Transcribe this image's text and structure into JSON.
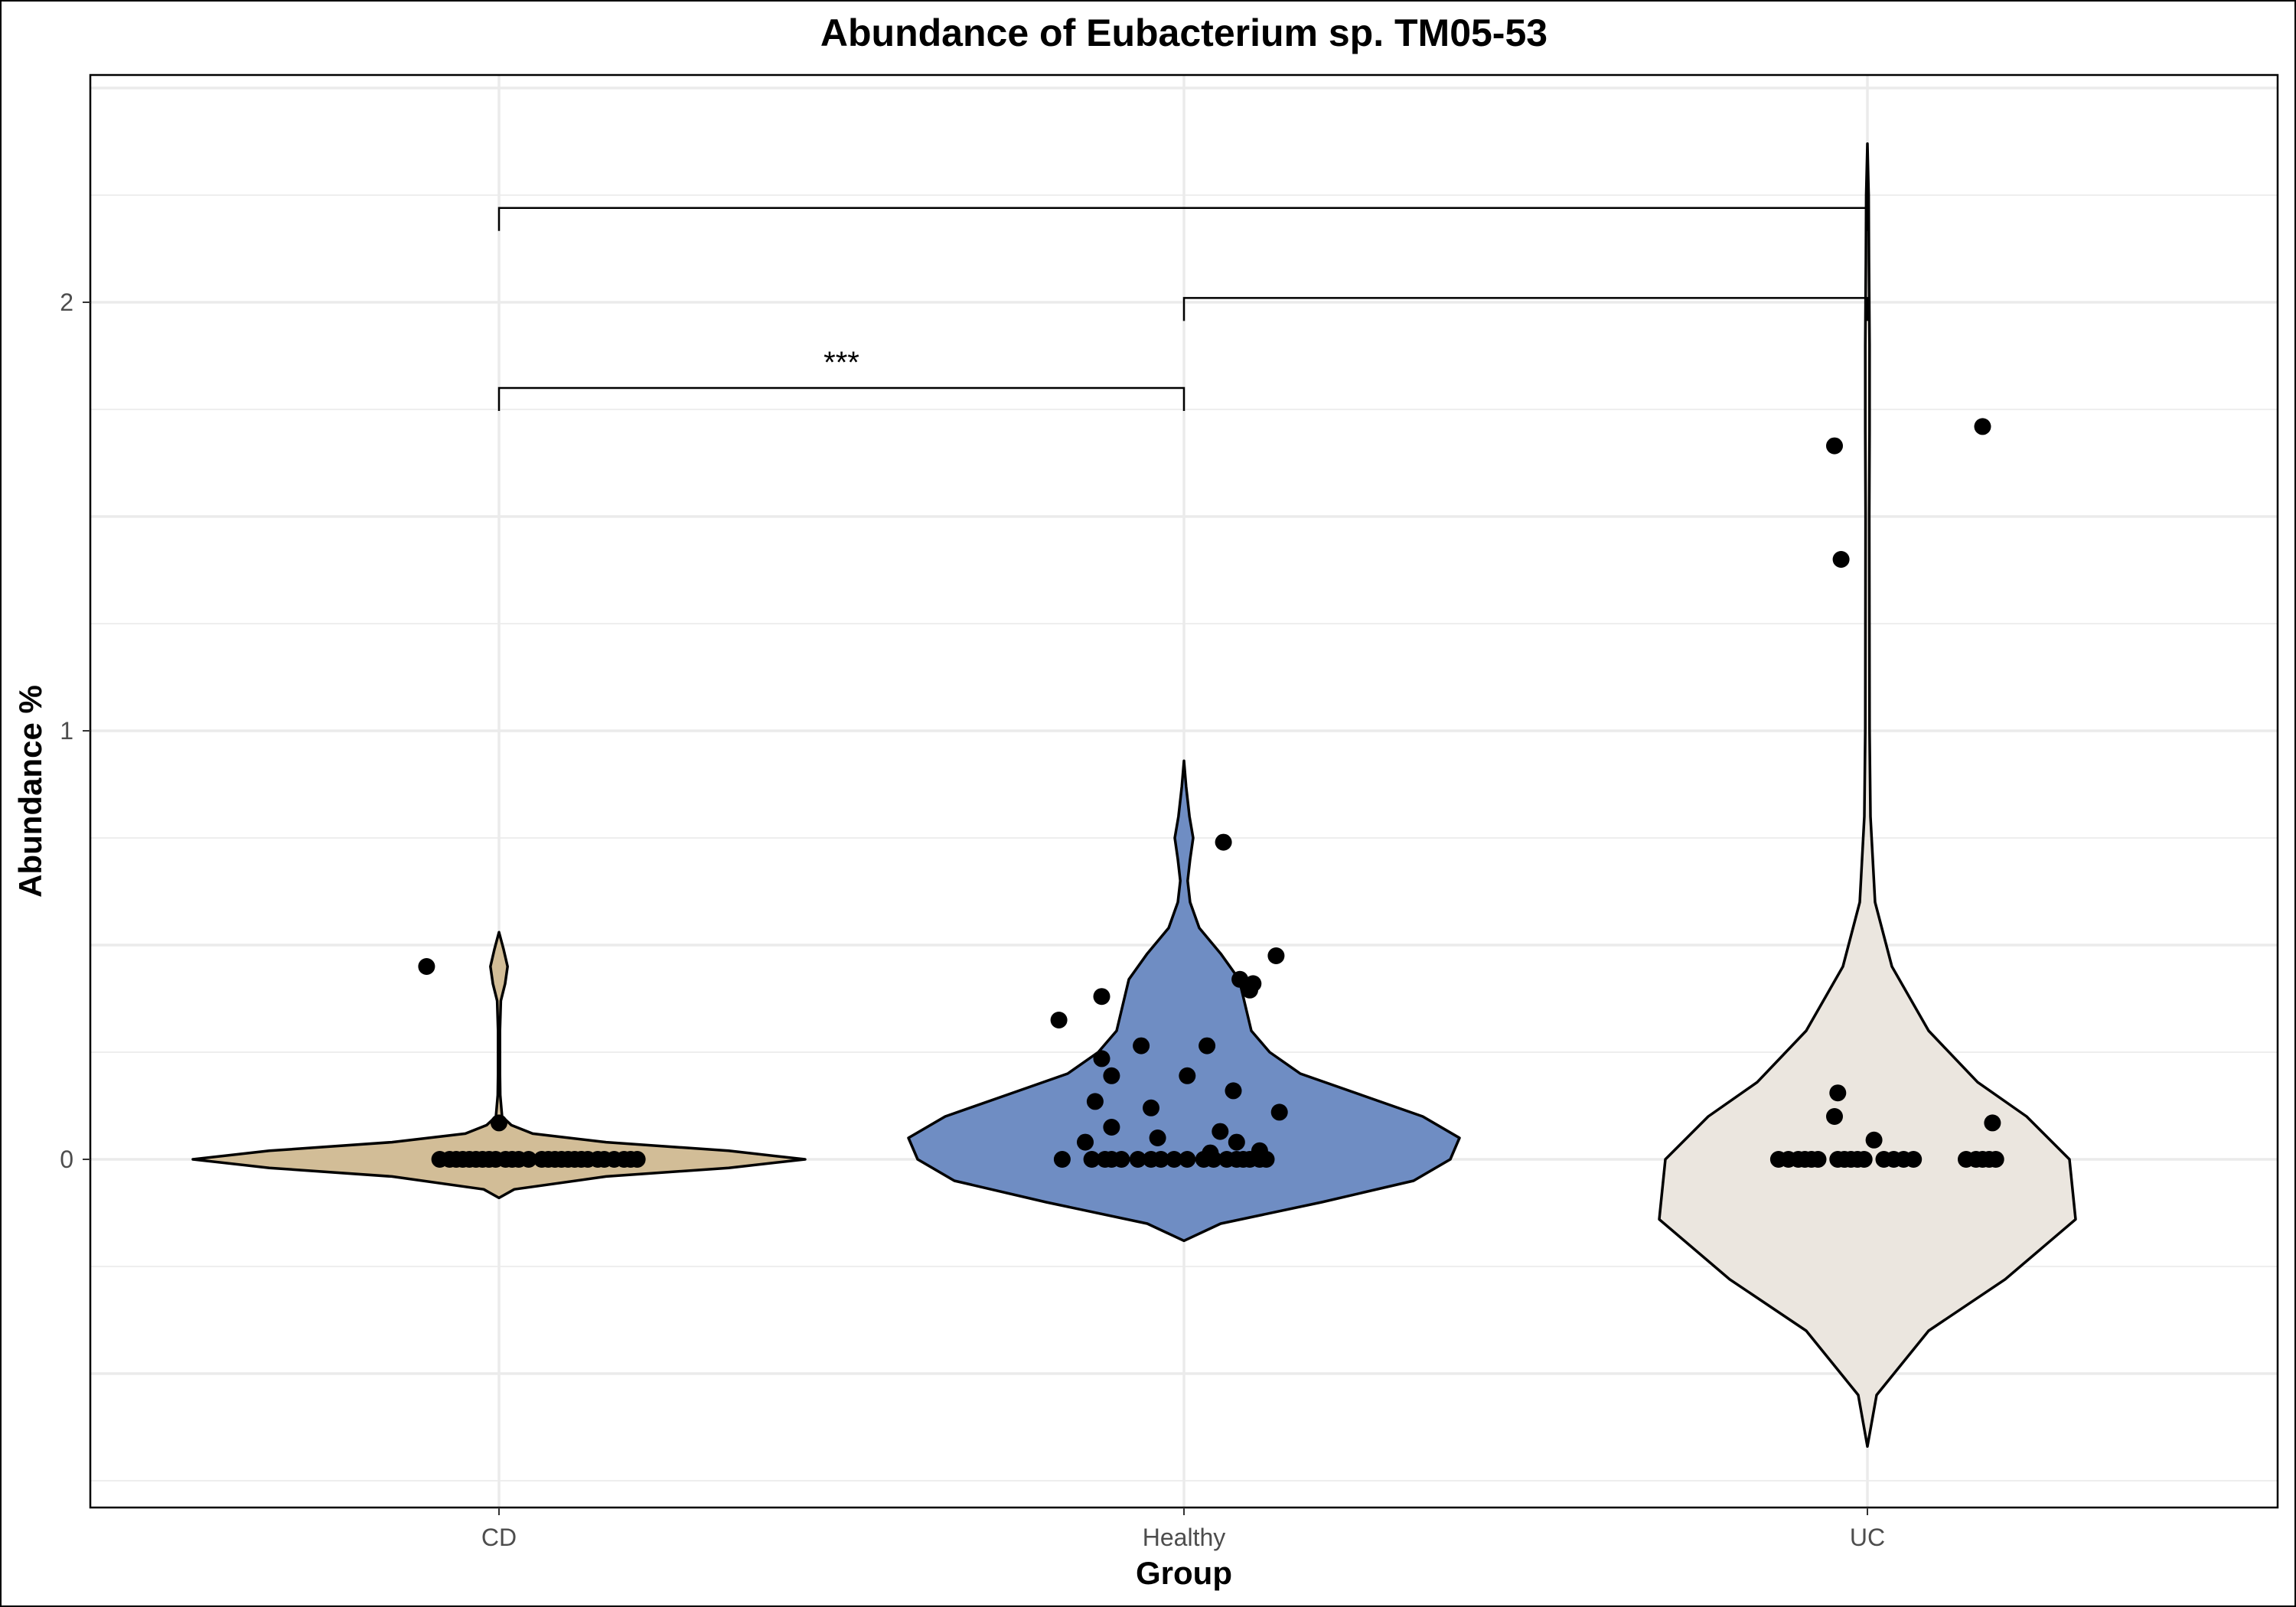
{
  "chart_data": {
    "type": "violin",
    "title": "Abundance of Eubacterium sp. TM05-53",
    "xlabel": "Group",
    "ylabel": "Abundance %",
    "categories": [
      "CD",
      "Healthy",
      "UC"
    ],
    "y_ticks": [
      "0",
      "1",
      "2"
    ],
    "ylim": [
      -0.82,
      2.53
    ],
    "grid": true,
    "legend": "none",
    "colors": {
      "CD": "#d2bd97",
      "Healthy": "#6f8dc3",
      "UC": "#ebe6df"
    },
    "violins": [
      {
        "group": "CD",
        "min": -0.09,
        "max": 0.53,
        "profile": [
          [
            -0.09,
            0.0
          ],
          [
            -0.07,
            0.05
          ],
          [
            -0.04,
            0.35
          ],
          [
            -0.02,
            0.75
          ],
          [
            0.0,
            1.0
          ],
          [
            0.02,
            0.75
          ],
          [
            0.04,
            0.35
          ],
          [
            0.06,
            0.11
          ],
          [
            0.08,
            0.04
          ],
          [
            0.1,
            0.01
          ],
          [
            0.15,
            0.004
          ],
          [
            0.2,
            0.003
          ],
          [
            0.3,
            0.003
          ],
          [
            0.37,
            0.006
          ],
          [
            0.41,
            0.02
          ],
          [
            0.45,
            0.028
          ],
          [
            0.49,
            0.015
          ],
          [
            0.53,
            0.0
          ]
        ]
      },
      {
        "group": "Healthy",
        "min": -0.19,
        "max": 0.93,
        "profile": [
          [
            -0.19,
            0.0
          ],
          [
            -0.15,
            0.12
          ],
          [
            -0.1,
            0.45
          ],
          [
            -0.05,
            0.75
          ],
          [
            0.0,
            0.87
          ],
          [
            0.05,
            0.9
          ],
          [
            0.1,
            0.78
          ],
          [
            0.15,
            0.58
          ],
          [
            0.2,
            0.38
          ],
          [
            0.25,
            0.28
          ],
          [
            0.3,
            0.22
          ],
          [
            0.36,
            0.2
          ],
          [
            0.42,
            0.18
          ],
          [
            0.48,
            0.12
          ],
          [
            0.54,
            0.05
          ],
          [
            0.6,
            0.02
          ],
          [
            0.65,
            0.012
          ],
          [
            0.7,
            0.02
          ],
          [
            0.75,
            0.03
          ],
          [
            0.8,
            0.018
          ],
          [
            0.87,
            0.007
          ],
          [
            0.93,
            0.0
          ]
        ]
      },
      {
        "group": "UC",
        "min": -0.67,
        "max": 2.37,
        "profile": [
          [
            -0.67,
            0.0
          ],
          [
            -0.55,
            0.03
          ],
          [
            -0.4,
            0.2
          ],
          [
            -0.28,
            0.45
          ],
          [
            -0.14,
            0.68
          ],
          [
            0.0,
            0.66
          ],
          [
            0.1,
            0.52
          ],
          [
            0.18,
            0.36
          ],
          [
            0.3,
            0.2
          ],
          [
            0.45,
            0.08
          ],
          [
            0.6,
            0.025
          ],
          [
            0.8,
            0.01
          ],
          [
            1.0,
            0.007
          ],
          [
            1.5,
            0.006
          ],
          [
            1.7,
            0.007
          ],
          [
            1.9,
            0.007
          ],
          [
            2.1,
            0.005
          ],
          [
            2.25,
            0.004
          ],
          [
            2.37,
            0.0
          ]
        ]
      }
    ],
    "points": {
      "CD": [
        [
          -0.18,
          0
        ],
        [
          -0.15,
          0
        ],
        [
          -0.13,
          0
        ],
        [
          -0.11,
          0
        ],
        [
          -0.09,
          0
        ],
        [
          -0.07,
          0
        ],
        [
          -0.05,
          0
        ],
        [
          -0.03,
          0
        ],
        [
          -0.01,
          0
        ],
        [
          0.02,
          0
        ],
        [
          0.04,
          0
        ],
        [
          0.06,
          0
        ],
        [
          0.09,
          0
        ],
        [
          0.13,
          0
        ],
        [
          0.15,
          0
        ],
        [
          0.17,
          0
        ],
        [
          0.19,
          0
        ],
        [
          0.21,
          0
        ],
        [
          0.23,
          0
        ],
        [
          0.25,
          0
        ],
        [
          0.27,
          0
        ],
        [
          0.3,
          0
        ],
        [
          0.32,
          0
        ],
        [
          0.35,
          0
        ],
        [
          0.38,
          0
        ],
        [
          0.4,
          0
        ],
        [
          0.42,
          0
        ],
        [
          -0.22,
          0.45
        ],
        [
          0.0,
          0.085
        ]
      ],
      "Healthy": [
        [
          -0.37,
          0
        ],
        [
          -0.28,
          0
        ],
        [
          -0.24,
          0
        ],
        [
          -0.22,
          0
        ],
        [
          -0.19,
          0
        ],
        [
          -0.14,
          0
        ],
        [
          -0.1,
          0
        ],
        [
          -0.07,
          0
        ],
        [
          -0.03,
          0
        ],
        [
          0.01,
          0
        ],
        [
          0.06,
          0
        ],
        [
          0.09,
          0
        ],
        [
          0.13,
          0
        ],
        [
          0.16,
          0
        ],
        [
          0.18,
          0
        ],
        [
          0.2,
          0
        ],
        [
          0.23,
          0
        ],
        [
          0.25,
          0
        ],
        [
          -0.3,
          0.04
        ],
        [
          -0.27,
          0.135
        ],
        [
          -0.22,
          0.075
        ],
        [
          -0.1,
          0.12
        ],
        [
          -0.08,
          0.05
        ],
        [
          0.01,
          0.195
        ],
        [
          0.08,
          0.015
        ],
        [
          0.11,
          0.065
        ],
        [
          0.15,
          0.16
        ],
        [
          0.16,
          0.04
        ],
        [
          0.17,
          0.42
        ],
        [
          0.2,
          0.395
        ],
        [
          0.21,
          0.41
        ],
        [
          0.23,
          0.02
        ],
        [
          0.28,
          0.475
        ],
        [
          0.29,
          0.11
        ],
        [
          -0.38,
          0.325
        ],
        [
          -0.25,
          0.38
        ],
        [
          -0.25,
          0.235
        ],
        [
          -0.22,
          0.195
        ],
        [
          -0.13,
          0.265
        ],
        [
          0.07,
          0.265
        ],
        [
          0.12,
          0.74
        ]
      ],
      "UC": [
        [
          -0.27,
          0
        ],
        [
          -0.24,
          0
        ],
        [
          -0.21,
          0
        ],
        [
          -0.19,
          0
        ],
        [
          -0.17,
          0
        ],
        [
          -0.15,
          0
        ],
        [
          -0.09,
          0
        ],
        [
          -0.07,
          0
        ],
        [
          -0.05,
          0
        ],
        [
          -0.03,
          0
        ],
        [
          -0.01,
          0
        ],
        [
          0.05,
          0
        ],
        [
          0.08,
          0
        ],
        [
          0.11,
          0
        ],
        [
          0.14,
          0
        ],
        [
          0.3,
          0
        ],
        [
          0.33,
          0
        ],
        [
          0.35,
          0
        ],
        [
          0.37,
          0
        ],
        [
          0.39,
          0
        ],
        [
          -0.1,
          1.665
        ],
        [
          -0.08,
          1.4
        ],
        [
          -0.1,
          0.1
        ],
        [
          -0.09,
          0.155
        ],
        [
          0.02,
          0.045
        ],
        [
          0.35,
          1.71
        ],
        [
          0.38,
          0.085
        ]
      ]
    },
    "comparisons": [
      {
        "from": "CD",
        "to": "Healthy",
        "y": 1.8,
        "label": "***"
      },
      {
        "from": "Healthy",
        "to": "UC",
        "y": 2.01,
        "label": ""
      },
      {
        "from": "CD",
        "to": "UC",
        "y": 2.22,
        "label": ""
      }
    ]
  }
}
